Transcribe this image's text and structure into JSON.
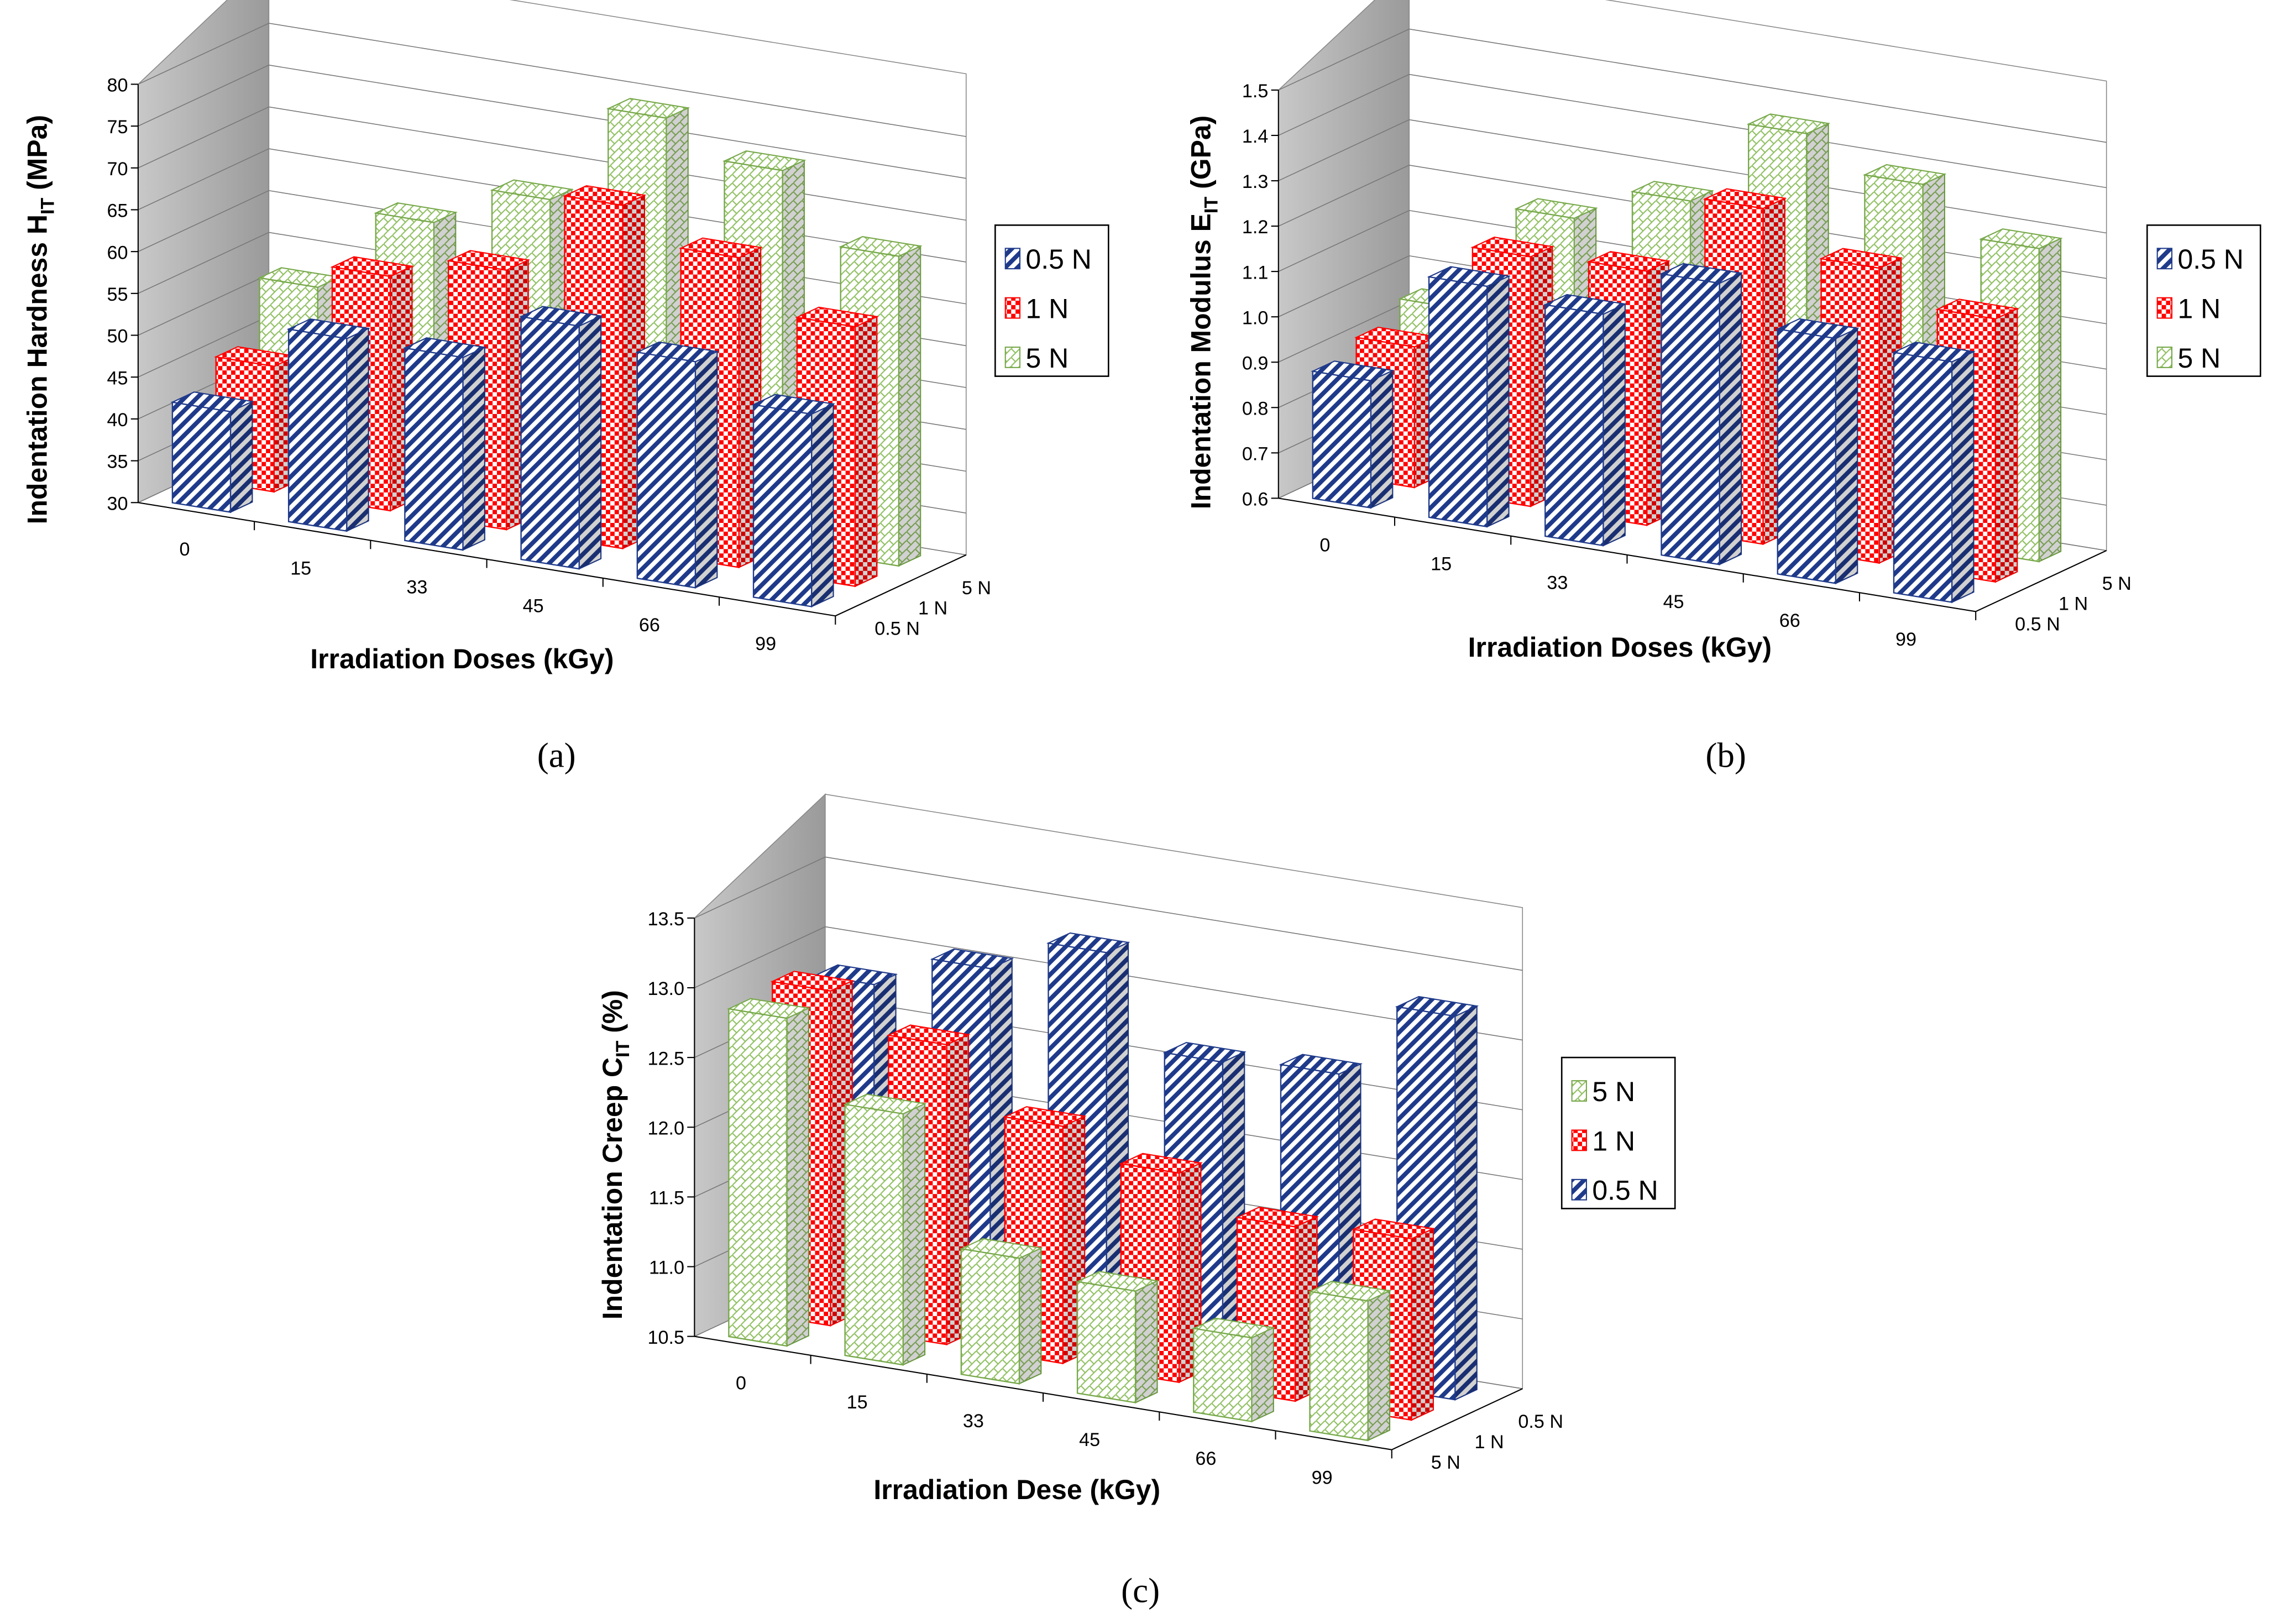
{
  "chart_data": [
    {
      "id": "a",
      "type": "bar",
      "variant": "3d-clustered",
      "caption": "(a)",
      "categories": [
        "0",
        "15",
        "33",
        "45",
        "66",
        "99"
      ],
      "xlabel": "Irradiation Doses (kGy)",
      "ylabel_parts": [
        "Indentation Hardness H",
        "IT",
        " (MPa)"
      ],
      "ylim": [
        30,
        80
      ],
      "yticks": [
        30,
        35,
        40,
        45,
        50,
        55,
        60,
        65,
        70,
        75,
        80
      ],
      "depth_labels": [
        "0.5 N",
        "1 N",
        "5 N"
      ],
      "series": [
        {
          "name": "0.5 N",
          "color": "#1f3a8a",
          "values": [
            42,
            53,
            53,
            59,
            57,
            53
          ]
        },
        {
          "name": "1 N",
          "color": "#ff0000",
          "values": [
            45,
            58,
            61,
            71,
            67,
            61
          ]
        },
        {
          "name": "5 N",
          "color": "#77a84a",
          "values": [
            52,
            62,
            67,
            79,
            75,
            67
          ]
        }
      ],
      "legend": [
        "0.5 N",
        "1 N",
        "5 N"
      ],
      "legend_position": "right"
    },
    {
      "id": "b",
      "type": "bar",
      "variant": "3d-clustered",
      "caption": "(b)",
      "categories": [
        "0",
        "15",
        "33",
        "45",
        "66",
        "99"
      ],
      "xlabel": "Irradiation Doses (kGy)",
      "ylabel_parts": [
        "Indentation Modulus E",
        "IT",
        " (GPa)"
      ],
      "ylim": [
        0.6,
        1.5
      ],
      "yticks": [
        "0.6",
        "0.7",
        "0.8",
        "0.9",
        "1.0",
        "1.1",
        "1.2",
        "1.3",
        "1.4",
        "1.5"
      ],
      "depth_labels": [
        "0.5 N",
        "1 N",
        "5 N"
      ],
      "series": [
        {
          "name": "0.5 N",
          "color": "#1f3a8a",
          "values": [
            0.88,
            1.13,
            1.11,
            1.22,
            1.14,
            1.13
          ]
        },
        {
          "name": "1 N",
          "color": "#ff0000",
          "values": [
            0.91,
            1.15,
            1.16,
            1.34,
            1.25,
            1.18
          ]
        },
        {
          "name": "5 N",
          "color": "#77a84a",
          "values": [
            0.95,
            1.19,
            1.27,
            1.46,
            1.39,
            1.29
          ]
        }
      ],
      "legend": [
        "0.5 N",
        "1 N",
        "5 N"
      ],
      "legend_position": "right"
    },
    {
      "id": "c",
      "type": "bar",
      "variant": "3d-clustered",
      "caption": "(c)",
      "categories": [
        "0",
        "15",
        "33",
        "45",
        "66",
        "99"
      ],
      "xlabel": "Irradiation Dese (kGy)",
      "ylabel_parts": [
        "Indentation Creep C",
        "IT",
        " (%)"
      ],
      "ylim": [
        10.5,
        13.5
      ],
      "yticks": [
        "10.5",
        "11.0",
        "11.5",
        "12.0",
        "12.5",
        "13.0",
        "13.5"
      ],
      "depth_labels": [
        "5 N",
        "1 N",
        "0.5 N"
      ],
      "series": [
        {
          "name": "5 N",
          "color": "#77a84a",
          "values": [
            12.85,
            12.3,
            11.4,
            11.3,
            11.1,
            11.5
          ]
        },
        {
          "name": "1 N",
          "color": "#ff0000",
          "values": [
            12.9,
            12.65,
            12.2,
            12.0,
            11.75,
            11.8
          ]
        },
        {
          "name": "0.5 N",
          "color": "#1f3a8a",
          "values": [
            12.8,
            13.05,
            13.3,
            12.65,
            12.7,
            13.25
          ]
        }
      ],
      "legend": [
        "5 N",
        "1 N",
        "0.5 N"
      ],
      "legend_position": "right"
    }
  ]
}
